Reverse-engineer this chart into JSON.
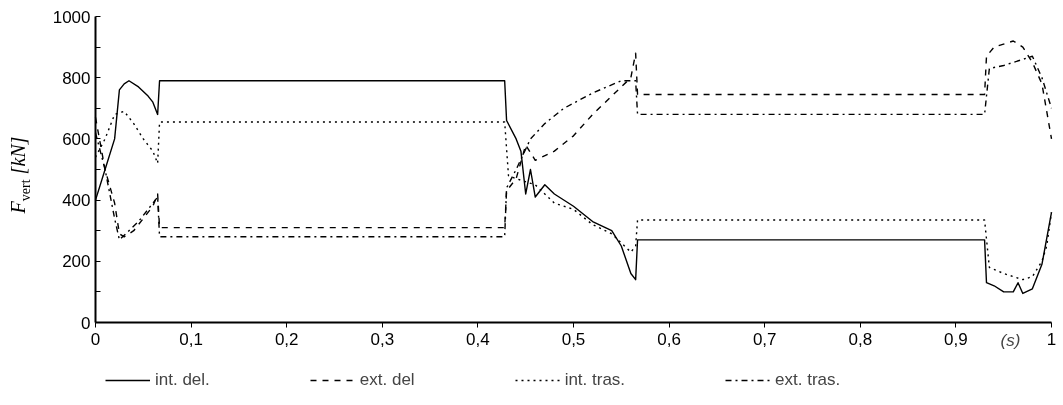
{
  "chart_data": {
    "type": "line",
    "ylabel": "F$_{vert}$ [kN]",
    "xlabel": "(s)",
    "xlim": [
      0,
      1
    ],
    "ylim": [
      0,
      1000
    ],
    "xticks": [
      0,
      {
        "value": 0.1,
        "label": "0,1"
      },
      {
        "value": 0.2,
        "label": "0,2"
      },
      {
        "value": 0.3,
        "label": "0,3"
      },
      {
        "value": 0.4,
        "label": "0,4"
      },
      {
        "value": 0.5,
        "label": "0,5"
      },
      {
        "value": 0.6,
        "label": "0,6"
      },
      {
        "value": 0.7,
        "label": "0,7"
      },
      {
        "value": 0.8,
        "label": "0,8"
      },
      {
        "value": 0.9,
        "label": "0,9"
      },
      1
    ],
    "yticks": [
      0,
      {
        "value": 100,
        "label": null
      },
      200,
      {
        "value": 300,
        "label": null
      },
      400,
      {
        "value": 500,
        "label": null
      },
      600,
      {
        "value": 700,
        "label": null
      },
      800,
      {
        "value": 900,
        "label": null
      },
      1000
    ],
    "grid": false,
    "legend": "bottom",
    "marker": "none",
    "series": [
      {
        "name": "int. del.",
        "color": "#000000",
        "line_style": "solid",
        "x": [
          0,
          0.01,
          0.02,
          0.025,
          0.03,
          0.035,
          0.045,
          0.055,
          0.06,
          0.065,
          0.067,
          0.428,
          0.43,
          0.44,
          0.445,
          0.45,
          0.455,
          0.46,
          0.47,
          0.48,
          0.5,
          0.52,
          0.54,
          0.55,
          0.56,
          0.565,
          0.567,
          0.93,
          0.932,
          0.94,
          0.95,
          0.96,
          0.965,
          0.97,
          0.98,
          0.99,
          1.0
        ],
        "values": [
          400,
          500,
          600,
          760,
          780,
          790,
          770,
          740,
          720,
          680,
          790,
          790,
          660,
          600,
          560,
          420,
          500,
          410,
          450,
          420,
          380,
          330,
          300,
          250,
          160,
          140,
          270,
          270,
          130,
          120,
          100,
          100,
          130,
          95,
          110,
          190,
          360
        ]
      },
      {
        "name": "ext. del",
        "color": "#000000",
        "line_style": "dashed",
        "x": [
          0,
          0.01,
          0.02,
          0.025,
          0.03,
          0.04,
          0.05,
          0.06,
          0.065,
          0.067,
          0.428,
          0.43,
          0.44,
          0.45,
          0.46,
          0.48,
          0.5,
          0.52,
          0.54,
          0.56,
          0.565,
          0.567,
          0.93,
          0.932,
          0.94,
          0.96,
          0.97,
          0.98,
          0.99,
          1.0
        ],
        "values": [
          670,
          500,
          390,
          290,
          280,
          300,
          340,
          380,
          420,
          310,
          310,
          430,
          470,
          580,
          530,
          560,
          610,
          680,
          740,
          800,
          880,
          745,
          745,
          870,
          900,
          920,
          900,
          850,
          780,
          600
        ]
      },
      {
        "name": "int. tras.",
        "color": "#000000",
        "line_style": "dotted",
        "x": [
          0,
          0.01,
          0.02,
          0.03,
          0.04,
          0.05,
          0.06,
          0.065,
          0.067,
          0.428,
          0.432,
          0.44,
          0.46,
          0.47,
          0.48,
          0.5,
          0.52,
          0.54,
          0.56,
          0.565,
          0.567,
          0.93,
          0.935,
          0.95,
          0.97,
          0.98,
          0.99,
          0.995,
          1.0
        ],
        "values": [
          540,
          600,
          680,
          690,
          650,
          600,
          560,
          520,
          655,
          655,
          480,
          470,
          450,
          420,
          390,
          370,
          320,
          290,
          230,
          250,
          335,
          335,
          180,
          160,
          140,
          150,
          200,
          250,
          360
        ]
      },
      {
        "name": "ext. tras.",
        "color": "#000000",
        "line_style": "dashdot",
        "x": [
          0,
          0.01,
          0.02,
          0.025,
          0.035,
          0.045,
          0.055,
          0.065,
          0.067,
          0.428,
          0.43,
          0.44,
          0.455,
          0.47,
          0.49,
          0.52,
          0.55,
          0.565,
          0.567,
          0.93,
          0.935,
          0.95,
          0.97,
          0.98,
          0.99,
          1.0
        ],
        "values": [
          620,
          500,
          340,
          270,
          300,
          330,
          370,
          410,
          280,
          280,
          440,
          500,
          600,
          650,
          700,
          750,
          790,
          790,
          680,
          680,
          830,
          840,
          860,
          870,
          800,
          700
        ]
      }
    ]
  }
}
